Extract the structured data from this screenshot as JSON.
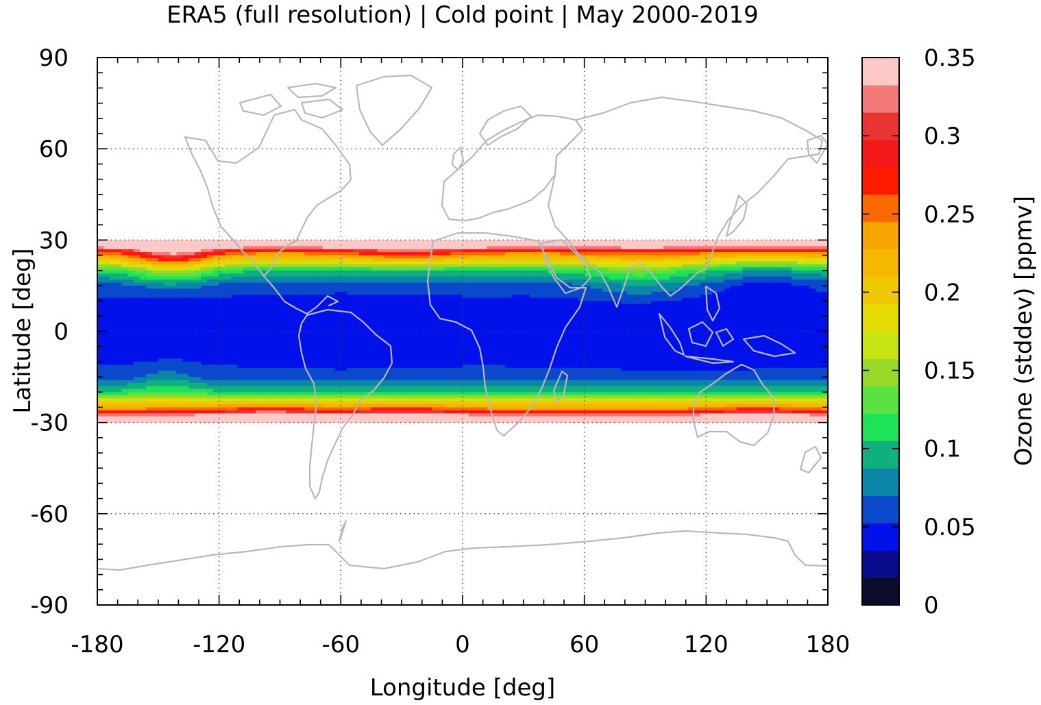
{
  "chart_data": {
    "type": "heatmap",
    "title": "ERA5 (full resolution) | Cold point | May 2000-2019",
    "xlabel": "Longitude [deg]",
    "ylabel": "Latitude [deg]",
    "colorbar_label": "Ozone (stddev) [ppmv]",
    "xlim": [
      -180,
      180
    ],
    "ylim": [
      -90,
      90
    ],
    "data_lat_range": [
      -30,
      30
    ],
    "x_ticks": [
      "-180",
      "-120",
      "-60",
      "0",
      "60",
      "120",
      "180"
    ],
    "y_ticks": [
      "90",
      "60",
      "30",
      "0",
      "-30",
      "-60",
      "-90"
    ],
    "x_tick_values": [
      -180,
      -120,
      -60,
      0,
      60,
      120,
      180
    ],
    "y_tick_values": [
      90,
      60,
      30,
      0,
      -30,
      -60,
      -90
    ],
    "grid": "dotted",
    "colorbar": {
      "range": [
        0,
        0.35
      ],
      "tick_labels": [
        "0",
        "0.05",
        "0.1",
        "0.15",
        "0.2",
        "0.25",
        "0.3",
        "0.35"
      ],
      "tick_values": [
        0,
        0.05,
        0.1,
        0.15,
        0.2,
        0.25,
        0.3,
        0.35
      ],
      "levels": [
        {
          "from": 0.0,
          "to": 0.0175,
          "color": "#0b0c2c"
        },
        {
          "from": 0.0175,
          "to": 0.035,
          "color": "#0a0a8c"
        },
        {
          "from": 0.035,
          "to": 0.0525,
          "color": "#0011ea"
        },
        {
          "from": 0.0525,
          "to": 0.07,
          "color": "#0a48cc"
        },
        {
          "from": 0.07,
          "to": 0.0875,
          "color": "#0b86a8"
        },
        {
          "from": 0.0875,
          "to": 0.105,
          "color": "#10b07e"
        },
        {
          "from": 0.105,
          "to": 0.1225,
          "color": "#1ee35a"
        },
        {
          "from": 0.1225,
          "to": 0.14,
          "color": "#5ae240"
        },
        {
          "from": 0.14,
          "to": 0.1575,
          "color": "#9ad828"
        },
        {
          "from": 0.1575,
          "to": 0.175,
          "color": "#c8e412"
        },
        {
          "from": 0.175,
          "to": 0.1925,
          "color": "#e6dc05"
        },
        {
          "from": 0.1925,
          "to": 0.21,
          "color": "#eec800"
        },
        {
          "from": 0.21,
          "to": 0.2275,
          "color": "#f5b800"
        },
        {
          "from": 0.2275,
          "to": 0.245,
          "color": "#f7a600"
        },
        {
          "from": 0.245,
          "to": 0.2625,
          "color": "#fb6a00"
        },
        {
          "from": 0.2625,
          "to": 0.28,
          "color": "#ff1a00"
        },
        {
          "from": 0.28,
          "to": 0.2975,
          "color": "#f51818"
        },
        {
          "from": 0.2975,
          "to": 0.315,
          "color": "#ea3434"
        },
        {
          "from": 0.315,
          "to": 0.3325,
          "color": "#f47a7a"
        },
        {
          "from": 0.3325,
          "to": 0.35,
          "color": "#fcc8c8"
        }
      ]
    }
  }
}
